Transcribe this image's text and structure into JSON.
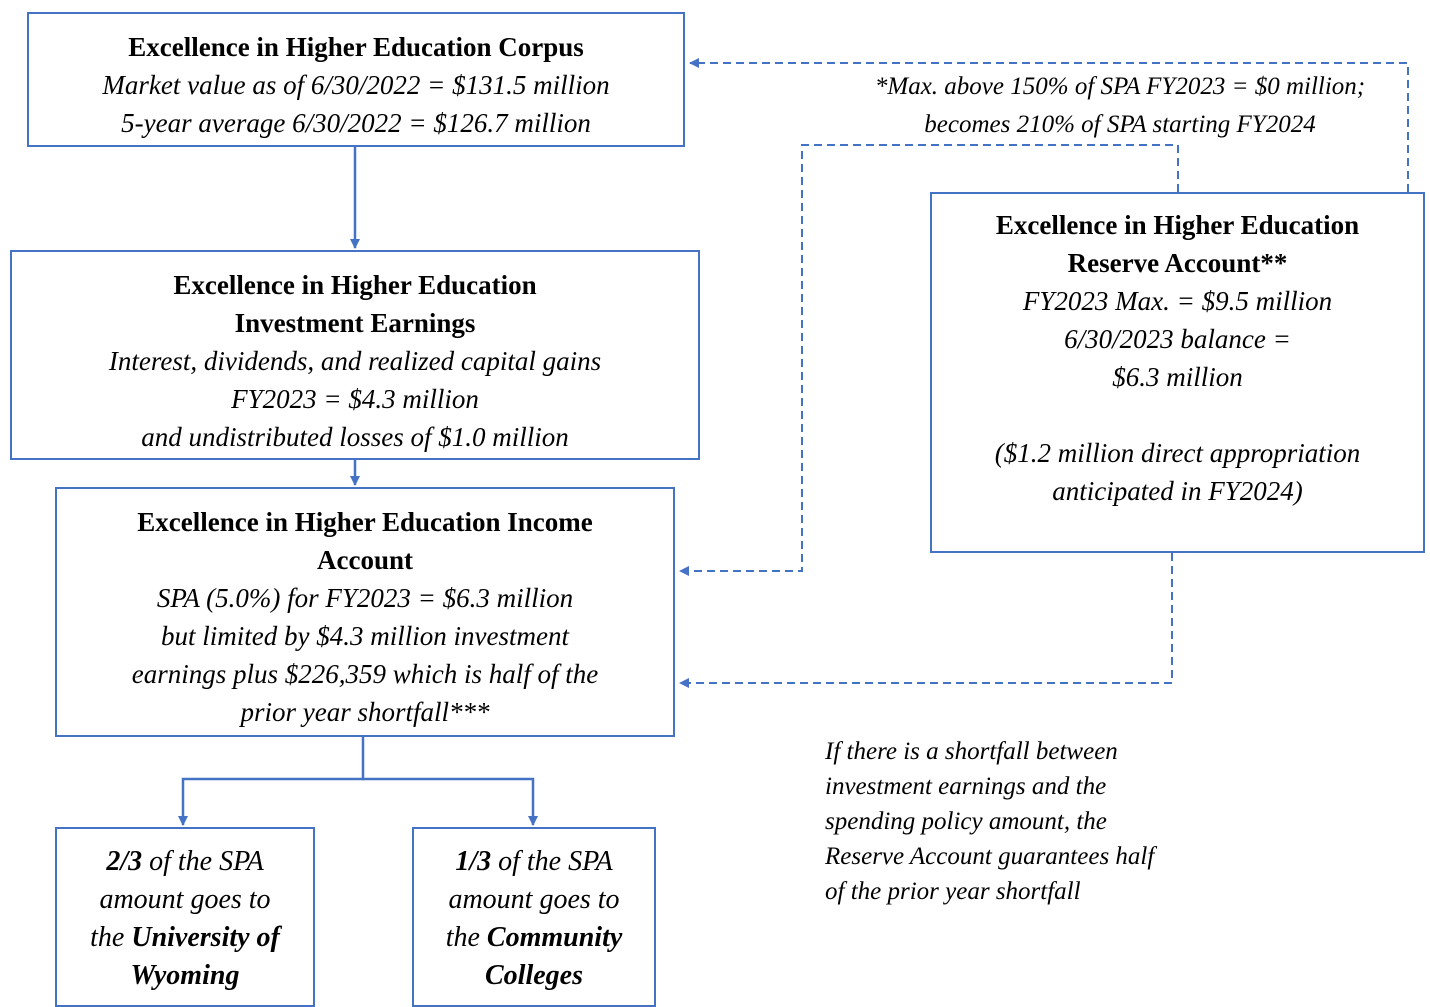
{
  "nodes": {
    "corpus": {
      "title": [
        "Excellence in Higher Education Corpus"
      ],
      "lines": [
        "Market value as of 6/30/2022 = $131.5 million",
        "5-year average 6/30/2022 = $126.7 million"
      ]
    },
    "earnings": {
      "title": [
        "Excellence in Higher Education",
        "Investment Earnings"
      ],
      "lines": [
        "Interest, dividends, and realized capital gains",
        "FY2023 = $4.3 million",
        "and undistributed losses of $1.0 million"
      ]
    },
    "income": {
      "title": [
        "Excellence in Higher Education Income",
        "Account"
      ],
      "lines": [
        "SPA (5.0%) for FY2023 = $6.3 million",
        "but limited by $4.3 million investment",
        "earnings plus $226,359 which is half of the",
        "prior year shortfall***"
      ]
    },
    "reserve": {
      "title": [
        "Excellence in Higher Education",
        "Reserve Account**"
      ],
      "lines": [
        "FY2023 Max. = $9.5 million",
        "6/30/2023 balance =",
        "$6.3 million"
      ],
      "note_lines": [
        "($1.2 million direct appropriation",
        "anticipated in FY2024)"
      ]
    },
    "uw": {
      "rich": [
        [
          {
            "text": "2/3",
            "style": "bold"
          },
          {
            "text": " of the SPA",
            "style": "italic"
          }
        ],
        [
          {
            "text": "amount goes to",
            "style": "italic"
          }
        ],
        [
          {
            "text": "the ",
            "style": "italic"
          },
          {
            "text": "University of",
            "style": "bold"
          }
        ],
        [
          {
            "text": "Wyoming",
            "style": "bold"
          }
        ]
      ]
    },
    "cc": {
      "rich": [
        [
          {
            "text": "1/3",
            "style": "bold"
          },
          {
            "text": " of the SPA",
            "style": "italic"
          }
        ],
        [
          {
            "text": "amount goes to",
            "style": "italic"
          }
        ],
        [
          {
            "text": "the ",
            "style": "italic"
          },
          {
            "text": "Community",
            "style": "bold"
          }
        ],
        [
          {
            "text": "Colleges",
            "style": "bold"
          }
        ]
      ]
    }
  },
  "notes": {
    "max_note": [
      "*Max. above 150% of SPA FY2023 = $0 million;",
      "becomes 210% of SPA starting FY2024"
    ],
    "shortfall_note": [
      "If there is a shortfall between",
      "investment earnings and the",
      "spending policy amount, the",
      "Reserve Account guarantees half",
      "of the prior year shortfall"
    ]
  }
}
